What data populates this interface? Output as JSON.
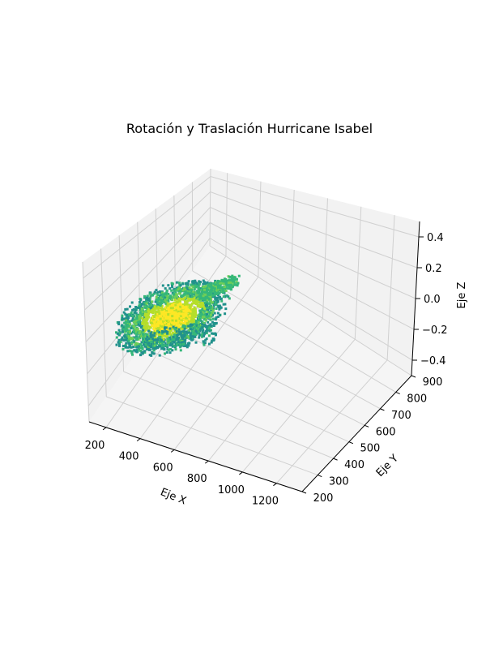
{
  "chart_data": {
    "type": "scatter",
    "title": "Rotación y Traslación Hurricane Isabel",
    "xlabel": "Eje X",
    "ylabel": "Eje Y",
    "zlabel": "Eje Z",
    "x_ticks": [
      "200",
      "400",
      "600",
      "800",
      "1000",
      "1200"
    ],
    "y_ticks": [
      "200",
      "300",
      "400",
      "500",
      "600",
      "700",
      "800",
      "900"
    ],
    "z_ticks": [
      "−0.4",
      "−0.2",
      "0.0",
      "0.2",
      "0.4"
    ],
    "xlim": [
      100,
      1350
    ],
    "ylim": [
      200,
      900
    ],
    "zlim": [
      -0.5,
      0.5
    ],
    "colormap": [
      "#21918c",
      "#35b779",
      "#6ece58",
      "#b5de2b",
      "#fde725"
    ],
    "grid": true
  }
}
